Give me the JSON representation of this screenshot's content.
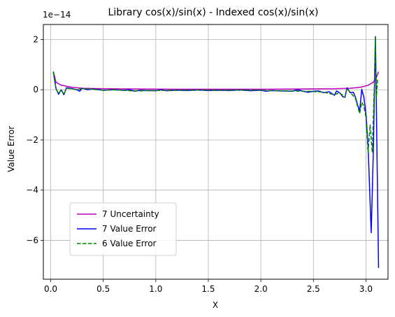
{
  "chart_data": {
    "type": "line",
    "title": "Library cos(x)/sin(x) - Indexed cos(x)/sin(x)",
    "xlabel": "X",
    "ylabel": "Value Error",
    "y_offset_text": "1e−14",
    "y_scale": 1e-14,
    "xlim": [
      -0.07,
      3.21
    ],
    "ylim": [
      -7.55,
      2.6
    ],
    "x_ticks": [
      0.0,
      0.5,
      1.0,
      1.5,
      2.0,
      2.5,
      3.0
    ],
    "x_tick_labels": [
      "0.0",
      "0.5",
      "1.0",
      "1.5",
      "2.0",
      "2.5",
      "3.0"
    ],
    "y_ticks": [
      2,
      0,
      -2,
      -4,
      -6
    ],
    "y_tick_labels": [
      "2",
      "0",
      "−2",
      "−4",
      "−6"
    ],
    "grid": true,
    "legend_position": "lower-left",
    "series": [
      {
        "name": "7 Uncertainty",
        "color": "#bf00bf",
        "style": "solid",
        "points": [
          [
            0.025,
            0.72
          ],
          [
            0.05,
            0.3
          ],
          [
            0.1,
            0.18
          ],
          [
            0.2,
            0.1
          ],
          [
            0.3,
            0.06
          ],
          [
            0.5,
            0.04
          ],
          [
            0.8,
            0.03
          ],
          [
            1.2,
            0.02
          ],
          [
            1.6,
            0.02
          ],
          [
            2.0,
            0.02
          ],
          [
            2.4,
            0.03
          ],
          [
            2.7,
            0.04
          ],
          [
            2.85,
            0.06
          ],
          [
            2.95,
            0.1
          ],
          [
            3.02,
            0.18
          ],
          [
            3.07,
            0.3
          ],
          [
            3.1,
            0.5
          ],
          [
            3.12,
            0.72
          ]
        ]
      },
      {
        "name": "7 Value Error",
        "color": "#0000ff",
        "style": "solid",
        "points": [
          [
            0.025,
            0.72
          ],
          [
            0.05,
            0.05
          ],
          [
            0.075,
            -0.18
          ],
          [
            0.1,
            0.0
          ],
          [
            0.125,
            -0.2
          ],
          [
            0.15,
            0.08
          ],
          [
            0.2,
            0.05
          ],
          [
            0.25,
            0.0
          ],
          [
            0.275,
            -0.06
          ],
          [
            0.3,
            0.06
          ],
          [
            0.35,
            0.0
          ],
          [
            0.4,
            0.03
          ],
          [
            0.5,
            -0.02
          ],
          [
            0.6,
            0.0
          ],
          [
            0.7,
            -0.02
          ],
          [
            0.75,
            0.0
          ],
          [
            0.8,
            -0.06
          ],
          [
            0.85,
            -0.02
          ],
          [
            0.9,
            -0.03
          ],
          [
            1.0,
            -0.04
          ],
          [
            1.05,
            0.0
          ],
          [
            1.1,
            -0.04
          ],
          [
            1.2,
            -0.02
          ],
          [
            1.3,
            -0.03
          ],
          [
            1.4,
            -0.01
          ],
          [
            1.5,
            -0.03
          ],
          [
            1.6,
            -0.02
          ],
          [
            1.7,
            -0.03
          ],
          [
            1.8,
            -0.01
          ],
          [
            1.9,
            -0.04
          ],
          [
            2.0,
            -0.02
          ],
          [
            2.05,
            -0.06
          ],
          [
            2.1,
            -0.03
          ],
          [
            2.2,
            -0.05
          ],
          [
            2.3,
            -0.06
          ],
          [
            2.35,
            0.0
          ],
          [
            2.4,
            -0.06
          ],
          [
            2.45,
            -0.1
          ],
          [
            2.5,
            -0.06
          ],
          [
            2.55,
            -0.05
          ],
          [
            2.6,
            -0.12
          ],
          [
            2.65,
            -0.08
          ],
          [
            2.7,
            -0.22
          ],
          [
            2.72,
            -0.05
          ],
          [
            2.75,
            -0.12
          ],
          [
            2.78,
            -0.28
          ],
          [
            2.8,
            -0.3
          ],
          [
            2.82,
            0.08
          ],
          [
            2.85,
            -0.12
          ],
          [
            2.88,
            -0.1
          ],
          [
            2.9,
            -0.3
          ],
          [
            2.92,
            -0.6
          ],
          [
            2.94,
            -0.85
          ],
          [
            2.96,
            0.02
          ],
          [
            2.98,
            -0.3
          ],
          [
            3.0,
            -0.95
          ],
          [
            3.02,
            -2.2
          ],
          [
            3.05,
            -5.7
          ],
          [
            3.07,
            -2.5
          ],
          [
            3.09,
            2.12
          ],
          [
            3.12,
            -7.1
          ]
        ]
      },
      {
        "name": "6 Value Error",
        "color": "#008000",
        "style": "dashed",
        "points": [
          [
            0.025,
            0.7
          ],
          [
            0.05,
            0.05
          ],
          [
            0.075,
            -0.15
          ],
          [
            0.1,
            0.0
          ],
          [
            0.125,
            -0.18
          ],
          [
            0.15,
            0.06
          ],
          [
            0.2,
            0.04
          ],
          [
            0.25,
            0.0
          ],
          [
            0.3,
            0.05
          ],
          [
            0.4,
            0.02
          ],
          [
            0.5,
            -0.02
          ],
          [
            0.6,
            0.0
          ],
          [
            0.8,
            -0.05
          ],
          [
            1.0,
            -0.03
          ],
          [
            1.2,
            -0.02
          ],
          [
            1.4,
            -0.01
          ],
          [
            1.6,
            -0.02
          ],
          [
            1.8,
            -0.01
          ],
          [
            2.0,
            -0.02
          ],
          [
            2.1,
            -0.04
          ],
          [
            2.3,
            -0.05
          ],
          [
            2.4,
            -0.06
          ],
          [
            2.5,
            -0.07
          ],
          [
            2.6,
            -0.1
          ],
          [
            2.7,
            -0.2
          ],
          [
            2.75,
            -0.12
          ],
          [
            2.8,
            -0.3
          ],
          [
            2.82,
            0.05
          ],
          [
            2.85,
            -0.1
          ],
          [
            2.9,
            -0.35
          ],
          [
            2.94,
            -0.95
          ],
          [
            2.96,
            -0.5
          ],
          [
            2.98,
            -0.65
          ],
          [
            3.0,
            -1.1
          ],
          [
            3.02,
            -2.5
          ],
          [
            3.04,
            -1.4
          ],
          [
            3.06,
            -2.5
          ],
          [
            3.08,
            0.2
          ],
          [
            3.09,
            2.12
          ],
          [
            3.1,
            -0.3
          ],
          [
            3.11,
            0.4
          ]
        ]
      }
    ]
  }
}
